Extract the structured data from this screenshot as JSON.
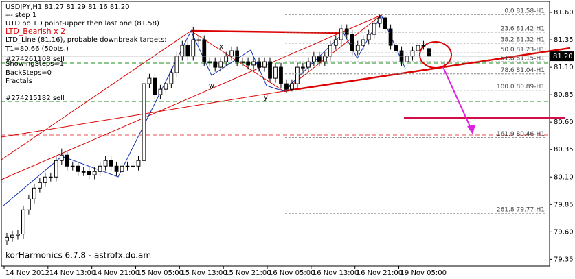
{
  "chart_data": {
    "type": "candlestick",
    "title": "USDJPY,H1  81.27 81.29 81.16 81.20",
    "annotations": [
      "---   step 1",
      "UTD no TD point-upper then last one (81.58)",
      "LTD_Line (81.16), probable downbreak targets:",
      "T1=80.66 (50pts.)",
      "ShowingSteps=1",
      "BackSteps=0",
      "Fractals"
    ],
    "signal": "LTD_Bearish x 2",
    "orders": [
      "#274261108 sell",
      "#274215182 sell"
    ],
    "point_labels": [
      "x",
      "w",
      "y"
    ],
    "watermark": "korHarmonics 6.7.8 - astrofx.do.am",
    "last_price": {
      "value": 81.2,
      "label": "81.20"
    },
    "fib_levels": [
      {
        "label": "0.0 81.58-H1",
        "value": 81.58
      },
      {
        "label": "23.6 81.42-H1",
        "value": 81.42
      },
      {
        "label": "38.2 81.32-H1",
        "value": 81.32
      },
      {
        "label": "50.0 81.23-H1",
        "value": 81.23
      },
      {
        "label": "61.8 81.15-H1",
        "value": 81.15
      },
      {
        "label": "78.6 81.04-H1",
        "value": 81.04
      },
      {
        "label": "100.0 80.89-H1",
        "value": 80.89
      },
      {
        "label": "161.9 80.46-H1",
        "value": 80.46
      },
      {
        "label": "261.8 79.77-H1",
        "value": 79.77
      }
    ],
    "x": [
      0,
      1,
      2,
      3,
      4,
      5,
      6,
      7,
      8,
      9,
      10,
      11,
      12,
      13,
      14,
      15,
      16,
      17,
      18,
      19,
      20,
      21,
      22,
      23,
      24,
      25,
      26,
      27,
      28,
      29,
      30,
      31,
      32,
      33,
      34,
      35,
      36,
      37,
      38,
      39,
      40,
      41,
      42,
      43,
      44,
      45,
      46,
      47,
      48,
      49,
      50,
      51,
      52,
      53,
      54,
      55,
      56,
      57,
      58,
      59,
      60,
      61,
      62,
      63,
      64,
      65,
      66,
      67,
      68,
      69,
      70,
      71,
      72,
      73,
      74,
      75,
      76,
      77
    ],
    "open": [
      79.52,
      79.55,
      79.57,
      79.58,
      79.8,
      79.9,
      80.0,
      80.05,
      80.1,
      80.1,
      80.25,
      80.3,
      80.2,
      80.2,
      80.15,
      80.15,
      80.12,
      80.15,
      80.2,
      80.25,
      80.2,
      80.15,
      80.2,
      80.2,
      80.2,
      80.25,
      80.95,
      81.0,
      80.85,
      80.9,
      80.95,
      81.05,
      81.2,
      81.3,
      81.2,
      81.35,
      81.35,
      81.15,
      81.15,
      81.1,
      81.15,
      81.2,
      81.25,
      81.15,
      81.15,
      81.12,
      81.15,
      81.1,
      81.15,
      81.0,
      81.1,
      80.95,
      80.9,
      80.95,
      81.1,
      81.1,
      81.15,
      81.2,
      81.15,
      81.2,
      81.3,
      81.35,
      81.45,
      81.4,
      81.25,
      81.3,
      81.35,
      81.4,
      81.5,
      81.55,
      81.45,
      81.3,
      81.25,
      81.15,
      81.2,
      81.25,
      81.3,
      81.27
    ],
    "high": [
      79.59,
      79.61,
      79.62,
      79.84,
      79.94,
      80.04,
      80.09,
      80.14,
      80.14,
      80.29,
      80.36,
      80.34,
      80.24,
      80.24,
      80.19,
      80.19,
      80.19,
      80.24,
      80.29,
      80.29,
      80.24,
      80.24,
      80.24,
      80.24,
      80.29,
      80.99,
      81.04,
      81.04,
      80.94,
      80.99,
      81.09,
      81.24,
      81.34,
      81.34,
      81.47,
      81.39,
      81.39,
      81.19,
      81.19,
      81.19,
      81.24,
      81.29,
      81.29,
      81.19,
      81.19,
      81.19,
      81.19,
      81.19,
      81.19,
      81.14,
      81.14,
      80.99,
      80.99,
      81.14,
      81.14,
      81.19,
      81.24,
      81.24,
      81.24,
      81.34,
      81.39,
      81.49,
      81.49,
      81.44,
      81.34,
      81.39,
      81.44,
      81.54,
      81.58,
      81.57,
      81.49,
      81.34,
      81.29,
      81.24,
      81.29,
      81.34,
      81.34,
      81.29
    ],
    "low": [
      79.48,
      79.51,
      79.53,
      79.54,
      79.76,
      79.86,
      79.96,
      80.01,
      80.06,
      80.06,
      80.21,
      80.16,
      80.16,
      80.11,
      80.11,
      80.08,
      80.08,
      80.11,
      80.16,
      80.16,
      80.11,
      80.11,
      80.16,
      80.16,
      80.16,
      80.21,
      80.91,
      80.81,
      80.81,
      80.86,
      80.91,
      81.01,
      81.16,
      81.16,
      81.16,
      81.31,
      81.11,
      81.11,
      81.06,
      81.06,
      81.11,
      81.16,
      81.11,
      81.11,
      81.08,
      81.08,
      81.06,
      81.06,
      80.96,
      80.96,
      80.91,
      80.87,
      80.88,
      80.91,
      81.06,
      81.06,
      81.11,
      81.11,
      81.11,
      81.16,
      81.26,
      81.31,
      81.36,
      81.21,
      81.21,
      81.26,
      81.31,
      81.36,
      81.46,
      81.41,
      81.26,
      81.21,
      81.11,
      81.11,
      81.16,
      81.21,
      81.26,
      81.16
    ],
    "close": [
      79.55,
      79.57,
      79.58,
      79.8,
      79.9,
      80.0,
      80.05,
      80.1,
      80.1,
      80.25,
      80.3,
      80.2,
      80.2,
      80.15,
      80.15,
      80.12,
      80.15,
      80.2,
      80.25,
      80.2,
      80.15,
      80.2,
      80.2,
      80.2,
      80.25,
      80.95,
      81.0,
      80.85,
      80.9,
      80.95,
      81.05,
      81.2,
      81.3,
      81.2,
      81.35,
      81.35,
      81.15,
      81.15,
      81.1,
      81.15,
      81.2,
      81.25,
      81.15,
      81.15,
      81.12,
      81.15,
      81.1,
      81.15,
      81.0,
      81.1,
      80.95,
      80.9,
      80.95,
      81.1,
      81.1,
      81.15,
      81.2,
      81.15,
      81.2,
      81.3,
      81.35,
      81.45,
      81.4,
      81.25,
      81.3,
      81.35,
      81.4,
      81.5,
      81.55,
      81.45,
      81.3,
      81.25,
      81.15,
      81.2,
      81.25,
      81.3,
      81.3,
      81.2
    ],
    "xlim": [
      -1,
      99
    ],
    "ylim": [
      79.29,
      81.7
    ],
    "xticks": [
      {
        "value": -0.5,
        "label": "14 Nov 2012"
      },
      {
        "value": 7.5,
        "label": "14 Nov 13:00"
      },
      {
        "value": 15.5,
        "label": "14 Nov 21:00"
      },
      {
        "value": 23.5,
        "label": "15 Nov 05:00"
      },
      {
        "value": 31.5,
        "label": "15 Nov 13:00"
      },
      {
        "value": 39.5,
        "label": "15 Nov 21:00"
      },
      {
        "value": 47.5,
        "label": "16 Nov 05:00"
      },
      {
        "value": 55.5,
        "label": "16 Nov 13:00"
      },
      {
        "value": 63.5,
        "label": "16 Nov 21:00"
      },
      {
        "value": 71.5,
        "label": "19 Nov 05:00"
      }
    ],
    "yticks": [
      {
        "value": 81.6,
        "label": "81.60"
      },
      {
        "value": 81.35,
        "label": "81.35"
      },
      {
        "value": 81.1,
        "label": "81.10"
      },
      {
        "value": 80.85,
        "label": "80.85"
      },
      {
        "value": 80.6,
        "label": "80.60"
      },
      {
        "value": 80.35,
        "label": "80.35"
      },
      {
        "value": 80.1,
        "label": "80.10"
      },
      {
        "value": 79.85,
        "label": "79.85"
      },
      {
        "value": 79.6,
        "label": "79.60"
      },
      {
        "value": 79.35,
        "label": "79.35"
      }
    ],
    "up_color": "#ffffff",
    "down_color": "#000000"
  }
}
